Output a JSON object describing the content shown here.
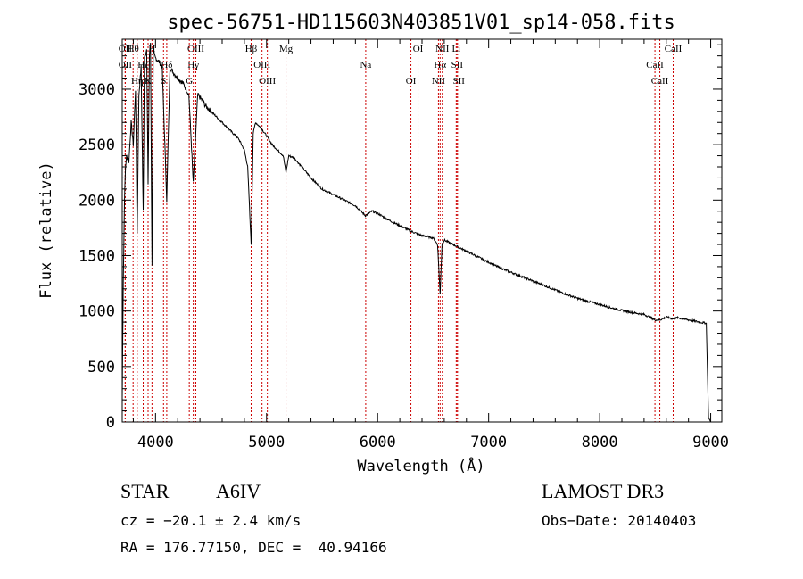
{
  "chart_data": {
    "type": "line",
    "title": "spec-56751-HD115603N403851V01_sp14-058.fits",
    "xlabel": "Wavelength (Å)",
    "ylabel": "Flux (relative)",
    "xlim": [
      3700,
      9100
    ],
    "ylim": [
      0,
      3450
    ],
    "xticks": [
      4000,
      5000,
      6000,
      7000,
      8000,
      9000
    ],
    "yticks": [
      0,
      500,
      1000,
      1500,
      2000,
      2500,
      3000
    ],
    "grid": false,
    "series": [
      {
        "name": "Flux",
        "x": [
          3700,
          3710,
          3720,
          3730,
          3740,
          3760,
          3780,
          3800,
          3820,
          3835,
          3850,
          3870,
          3889,
          3900,
          3920,
          3933,
          3945,
          3955,
          3968,
          3980,
          3990,
          4000,
          4030,
          4060,
          4101,
          4130,
          4160,
          4200,
          4250,
          4300,
          4340,
          4380,
          4420,
          4450,
          4500,
          4550,
          4600,
          4650,
          4700,
          4750,
          4800,
          4830,
          4861,
          4880,
          4900,
          4950,
          5000,
          5050,
          5100,
          5150,
          5175,
          5200,
          5250,
          5300,
          5400,
          5500,
          5600,
          5700,
          5800,
          5890,
          5950,
          6000,
          6100,
          6200,
          6300,
          6400,
          6500,
          6540,
          6563,
          6580,
          6600,
          6700,
          6800,
          6900,
          7000,
          7100,
          7200,
          7300,
          7400,
          7500,
          7600,
          7700,
          7800,
          7900,
          8000,
          8100,
          8200,
          8300,
          8400,
          8498,
          8542,
          8600,
          8662,
          8700,
          8800,
          8900,
          8960,
          8980,
          9000
        ],
        "values": [
          200,
          1300,
          2000,
          2300,
          2400,
          2350,
          2700,
          2500,
          3000,
          1700,
          2950,
          3200,
          1900,
          3300,
          3350,
          2150,
          3300,
          3420,
          1400,
          3350,
          3300,
          3280,
          3250,
          3200,
          2000,
          3200,
          3150,
          3100,
          3050,
          2950,
          2150,
          2950,
          2900,
          2850,
          2800,
          2750,
          2700,
          2650,
          2600,
          2550,
          2450,
          2300,
          1600,
          2600,
          2700,
          2650,
          2580,
          2500,
          2450,
          2400,
          2250,
          2400,
          2380,
          2320,
          2200,
          2100,
          2050,
          2000,
          1950,
          1860,
          1900,
          1880,
          1820,
          1770,
          1720,
          1680,
          1660,
          1600,
          1150,
          1600,
          1640,
          1590,
          1540,
          1490,
          1440,
          1390,
          1350,
          1310,
          1270,
          1230,
          1190,
          1150,
          1115,
          1085,
          1060,
          1030,
          1005,
          985,
          970,
          920,
          920,
          945,
          930,
          940,
          920,
          900,
          890,
          40,
          0
        ]
      }
    ],
    "lines": [
      {
        "label": "Hθ",
        "x": 3798
      },
      {
        "label": "OII",
        "x": 3727
      },
      {
        "label": "Hη",
        "x": 3835
      },
      {
        "label": "OII",
        "x": 3727
      },
      {
        "label": "Hζ",
        "x": 3889
      },
      {
        "label": "K",
        "x": 3933
      },
      {
        "label": "H",
        "x": 3968
      },
      {
        "label": "Hδ",
        "x": 4101
      },
      {
        "label": "S",
        "x": 4072
      },
      {
        "label": "OIII",
        "x": 4363
      },
      {
        "label": "Hγ",
        "x": 4340
      },
      {
        "label": "G",
        "x": 4304
      },
      {
        "label": "Hβ",
        "x": 4861
      },
      {
        "label": "OIII",
        "x": 4959
      },
      {
        "label": "OIII",
        "x": 5007
      },
      {
        "label": "Mg",
        "x": 5175
      },
      {
        "label": "Na",
        "x": 5893
      },
      {
        "label": "OI",
        "x": 6300
      },
      {
        "label": "OI",
        "x": 6364
      },
      {
        "label": "Hα",
        "x": 6563
      },
      {
        "label": "NII",
        "x": 6548
      },
      {
        "label": "NII",
        "x": 6583
      },
      {
        "label": "SII",
        "x": 6716
      },
      {
        "label": "SII",
        "x": 6731
      },
      {
        "label": "Li",
        "x": 6708
      },
      {
        "label": "CaII",
        "x": 8498
      },
      {
        "label": "CaII",
        "x": 8542
      },
      {
        "label": "CaII",
        "x": 8662
      }
    ]
  },
  "footer": {
    "object_class": "STAR",
    "subclass": "A6IV",
    "survey": "LAMOST DR3",
    "cz": "cz = −20.1 ± 2.4 km/s",
    "obs_date": "Obs−Date: 20140403",
    "coords": "RA = 176.77150, DEC =  40.94166"
  }
}
